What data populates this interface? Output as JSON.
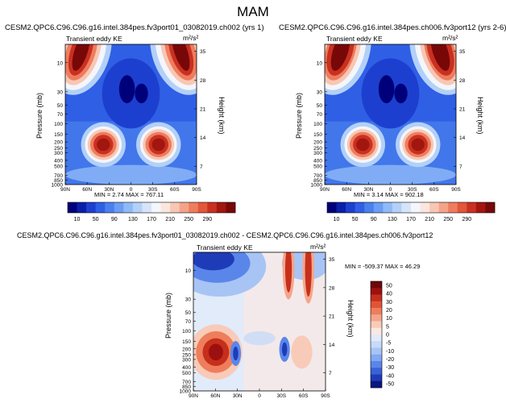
{
  "page": {
    "title": "MAM"
  },
  "colors": {
    "blues": [
      "#00007a",
      "#0a1fa8",
      "#1d3fcf",
      "#2f5fe5",
      "#4a80ee",
      "#6a9df4",
      "#8fbaf7",
      "#b3d0f8",
      "#d6e4fa",
      "#f3f6fb"
    ],
    "reds": [
      "#fbe6dd",
      "#f8c7b3",
      "#f4a388",
      "#ee7c5e",
      "#e2563a",
      "#c93020",
      "#a21610",
      "#780808"
    ],
    "diff": [
      "#0a1680",
      "#1f3cb8",
      "#3a62d8",
      "#5a86ea",
      "#82a8f2",
      "#a7c4f5",
      "#c7daf8",
      "#e1ebfa",
      "#fbe8e2",
      "#f8cbb8",
      "#f4a68a",
      "#ee7d5c",
      "#e05535",
      "#c62f1c",
      "#9c1110",
      "#6e0708"
    ]
  },
  "chart_data": [
    {
      "type": "heatmap",
      "title": "CESM2.QPC6.C96.C96.g16.intel.384pes.fv3port01_03082019.ch002 (yrs 1)",
      "subtitle": "Transient eddy KE",
      "units": "m²/s²",
      "xlabel": "",
      "ylabel": "Pressure (mb)",
      "ylabel_right": "Height (km)",
      "xticks": [
        "90N",
        "60N",
        "30N",
        "0",
        "30S",
        "60S",
        "90S"
      ],
      "yticks": [
        "10",
        "30",
        "50",
        "70",
        "100",
        "150",
        "200",
        "250",
        "300",
        "400",
        "500",
        "700",
        "850",
        "1000"
      ],
      "yticks_right": [
        "35",
        "28",
        "21",
        "14",
        "7"
      ],
      "stats": {
        "min": 2.74,
        "max": 767.11
      },
      "stats_text": "MIN =   2.74  MAX = 767.11"
    },
    {
      "type": "heatmap",
      "title": "CESM2.QPC6.C96.C96.g16.intel.384pes.ch006.fv3port12 (yrs 2-6)",
      "subtitle": "Transient eddy KE",
      "units": "m²/s²",
      "xlabel": "",
      "ylabel": "Pressure (mb)",
      "ylabel_right": "Height (km)",
      "xticks": [
        "90N",
        "60N",
        "30N",
        "0",
        "30S",
        "60S",
        "90S"
      ],
      "yticks": [
        "10",
        "30",
        "50",
        "70",
        "100",
        "150",
        "200",
        "250",
        "300",
        "400",
        "500",
        "700",
        "850",
        "1000"
      ],
      "yticks_right": [
        "35",
        "28",
        "21",
        "14",
        "7"
      ],
      "stats": {
        "min": 3.14,
        "max": 902.18
      },
      "stats_text": "MIN =   3.14  MAX = 902.18"
    },
    {
      "type": "heatmap",
      "title": "CESM2.QPC6.C96.C96.g16.intel.384pes.fv3port01_03082019.ch002 - CESM2.QPC6.C96.C96.g16.intel.384pes.ch006.fv3port12",
      "subtitle": "Transient eddy KE",
      "units": "m²/s²",
      "xlabel": "",
      "ylabel": "Pressure (mb)",
      "ylabel_right": "Height (km)",
      "xticks": [
        "90N",
        "60N",
        "30N",
        "0",
        "30S",
        "60S",
        "90S"
      ],
      "yticks": [
        "10",
        "30",
        "50",
        "70",
        "100",
        "150",
        "200",
        "250",
        "300",
        "400",
        "500",
        "700",
        "850",
        "1000"
      ],
      "yticks_right": [
        "35",
        "28",
        "21",
        "14",
        "7"
      ],
      "stats": {
        "min": -509.37,
        "max": 46.29
      },
      "stats_text": "MIN = -509.37  MAX =  46.29"
    }
  ],
  "colorbar_top": {
    "labels": [
      "10",
      "50",
      "90",
      "130",
      "170",
      "210",
      "250",
      "290"
    ]
  },
  "colorbar_diff": {
    "labels": [
      "50",
      "40",
      "30",
      "20",
      "10",
      "5",
      "0",
      "-5",
      "-10",
      "-20",
      "-30",
      "-40",
      "-50"
    ]
  }
}
